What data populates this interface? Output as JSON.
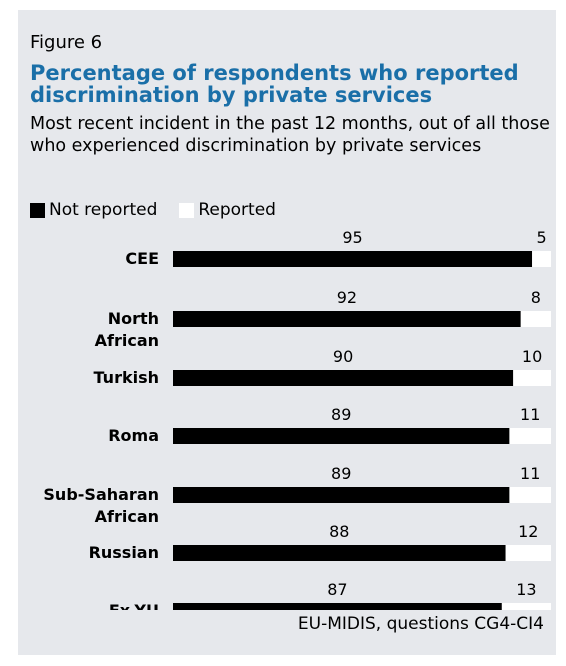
{
  "figure_label": "Figure 6",
  "title": "Percentage of respondents who reported discrimination by private services",
  "subtitle": "Most recent incident in the past 12 months, out of all those who experienced discrimination by private services",
  "source": "EU-MIDIS, questions CG4-CI4",
  "colors": {
    "not_reported": "#000000",
    "reported": "#ffffff",
    "title": "#1a6fa8",
    "background": "#e6e8ec"
  },
  "chart_data": {
    "type": "bar",
    "orientation": "horizontal",
    "stacked": true,
    "categories": [
      "CEE",
      "North African",
      "Turkish",
      "Roma",
      "Sub-Saharan African",
      "Russian",
      "Ex-YU"
    ],
    "category_lines": [
      [
        "CEE"
      ],
      [
        "North",
        "African"
      ],
      [
        "Turkish"
      ],
      [
        "Roma"
      ],
      [
        "Sub-Saharan",
        "African"
      ],
      [
        "Russian"
      ],
      [
        "Ex-YU"
      ]
    ],
    "series": [
      {
        "name": "Not reported",
        "values": [
          95,
          92,
          90,
          89,
          89,
          88,
          87
        ]
      },
      {
        "name": "Reported",
        "values": [
          5,
          8,
          10,
          11,
          11,
          12,
          13
        ]
      }
    ],
    "xlim": [
      0,
      100
    ],
    "grid": false,
    "legend": "top-left"
  }
}
